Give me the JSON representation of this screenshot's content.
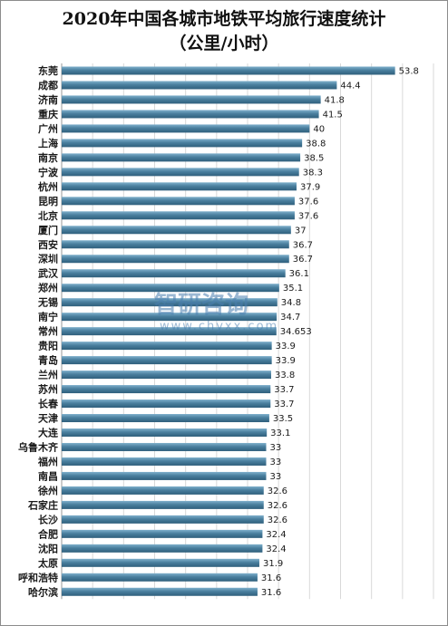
{
  "chart_data": {
    "type": "bar",
    "orientation": "horizontal",
    "title": "2020年中国各城市地铁平均旅行速度统计",
    "subtitle": "（公里/小时）",
    "xlabel": "",
    "ylabel": "",
    "xlim": [
      0,
      60
    ],
    "grid": true,
    "legend": "none",
    "bar_color": "#4a7f9e",
    "categories": [
      "东莞",
      "成都",
      "济南",
      "重庆",
      "广州",
      "上海",
      "南京",
      "宁波",
      "杭州",
      "昆明",
      "北京",
      "厦门",
      "西安",
      "深圳",
      "武汉",
      "郑州",
      "无锡",
      "南宁",
      "常州",
      "贵阳",
      "青岛",
      "兰州",
      "苏州",
      "长春",
      "天津",
      "大连",
      "乌鲁木齐",
      "福州",
      "南昌",
      "徐州",
      "石家庄",
      "长沙",
      "合肥",
      "沈阳",
      "太原",
      "呼和浩特",
      "哈尔滨"
    ],
    "values": [
      53.8,
      44.4,
      41.8,
      41.5,
      40,
      38.8,
      38.5,
      38.3,
      37.9,
      37.6,
      37.6,
      37,
      36.7,
      36.7,
      36.1,
      35.1,
      34.8,
      34.7,
      34.653,
      33.9,
      33.9,
      33.8,
      33.7,
      33.7,
      33.5,
      33.1,
      33,
      33,
      33,
      32.6,
      32.6,
      32.6,
      32.4,
      32.4,
      31.9,
      31.6,
      31.6
    ],
    "value_labels": [
      "53.8",
      "44.4",
      "41.8",
      "41.5",
      "40",
      "38.8",
      "38.5",
      "38.3",
      "37.9",
      "37.6",
      "37.6",
      "37",
      "36.7",
      "36.7",
      "36.1",
      "35.1",
      "34.8",
      "34.7",
      "34.653",
      "33.9",
      "33.9",
      "33.8",
      "33.7",
      "33.7",
      "33.5",
      "33.1",
      "33",
      "33",
      "33",
      "32.6",
      "32.6",
      "32.6",
      "32.4",
      "32.4",
      "31.9",
      "31.6",
      "31.6"
    ]
  },
  "watermark": {
    "logo_text": "智研咨询",
    "url": "www.chyxx.com"
  }
}
